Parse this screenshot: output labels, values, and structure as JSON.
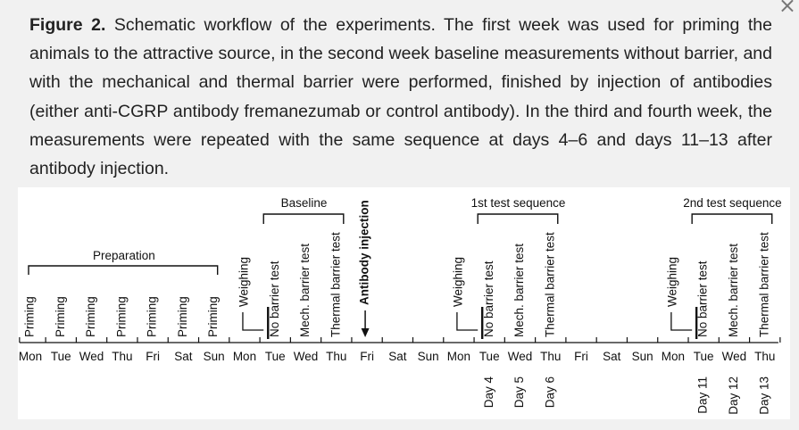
{
  "caption": {
    "label": "Figure 2.",
    "text": "Schematic workflow of the experiments. The first week was used for priming the animals to the attractive source, in the second week baseline measurements without barrier, and with the mechanical and thermal barrier were performed, finished by injection of antibodies (either anti-CGRP antibody fremanezumab or control antibody). In the third and fourth week, the measurements were repeated with the same sequence at days 4–6 and days 11–13 after antibody injection."
  },
  "close_icon": "×",
  "timeline": {
    "days": [
      "Mon",
      "Tue",
      "Wed",
      "Thu",
      "Fri",
      "Sat",
      "Sun",
      "Mon",
      "Tue",
      "Wed",
      "Thu",
      "Fri",
      "Sat",
      "Sun",
      "Mon",
      "Tue",
      "Wed",
      "Thu",
      "Fri",
      "Sat",
      "Sun",
      "Mon",
      "Tue",
      "Wed",
      "Thu"
    ],
    "brackets": {
      "preparation": "Preparation",
      "baseline": "Baseline",
      "test1": "1st test sequence",
      "test2": "2nd test sequence"
    },
    "events": {
      "priming": "Priming",
      "weighing": "Weighing",
      "no_barrier": "No barrier test",
      "mech_barrier": "Mech. barrier test",
      "thermal_barrier": "Thermal barrier test",
      "antibody": "Antibody injection"
    },
    "day_numbers": [
      "Day 4",
      "Day 5",
      "Day 6",
      "Day 11",
      "Day 12",
      "Day 13"
    ],
    "colors": {
      "mech": "#3b3bb5",
      "thermal": "#d8202e",
      "antibody": "#2e9a36",
      "black": "#111111"
    }
  }
}
